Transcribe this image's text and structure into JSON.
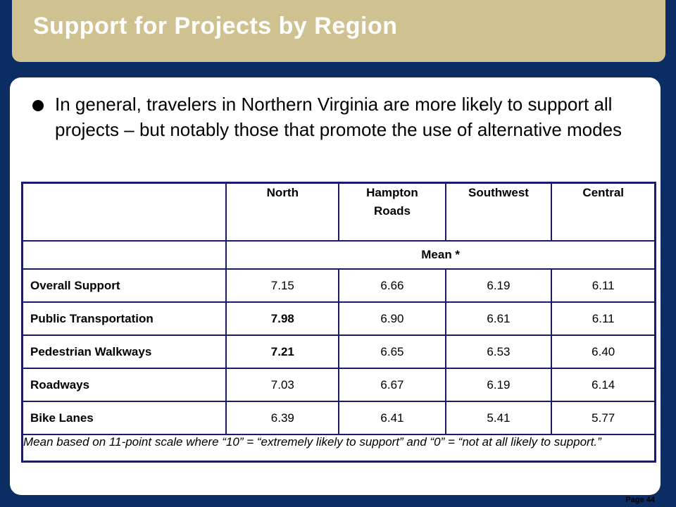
{
  "title": "Support for Projects by Region",
  "bullet": "In general, travelers in Northern Virginia are more likely to support all projects – but notably those that promote the use of alternative modes",
  "table": {
    "columns": [
      "North",
      "Hampton Roads",
      "Southwest",
      "Central"
    ],
    "subheader": "Mean *",
    "rows": [
      {
        "label": "Overall Support",
        "values": [
          "7.15",
          "6.66",
          "6.19",
          "6.11"
        ],
        "bold_first": false
      },
      {
        "label": "Public Transportation",
        "values": [
          "7.98",
          "6.90",
          "6.61",
          "6.11"
        ],
        "bold_first": true
      },
      {
        "label": "Pedestrian Walkways",
        "values": [
          "7.21",
          "6.65",
          "6.53",
          "6.40"
        ],
        "bold_first": true
      },
      {
        "label": "Roadways",
        "values": [
          "7.03",
          "6.67",
          "6.19",
          "6.14"
        ],
        "bold_first": false
      },
      {
        "label": "Bike Lanes",
        "values": [
          "6.39",
          "6.41",
          "5.41",
          "5.77"
        ],
        "bold_first": false
      }
    ],
    "note": "Mean based on 11-point scale where “10” = “extremely likely to support” and “0” = “not at all likely to support.”"
  },
  "page": "Page 44",
  "colors": {
    "background": "#0b2d64",
    "title_bar": "#cfc290",
    "table_border": "#1a1a6e"
  }
}
